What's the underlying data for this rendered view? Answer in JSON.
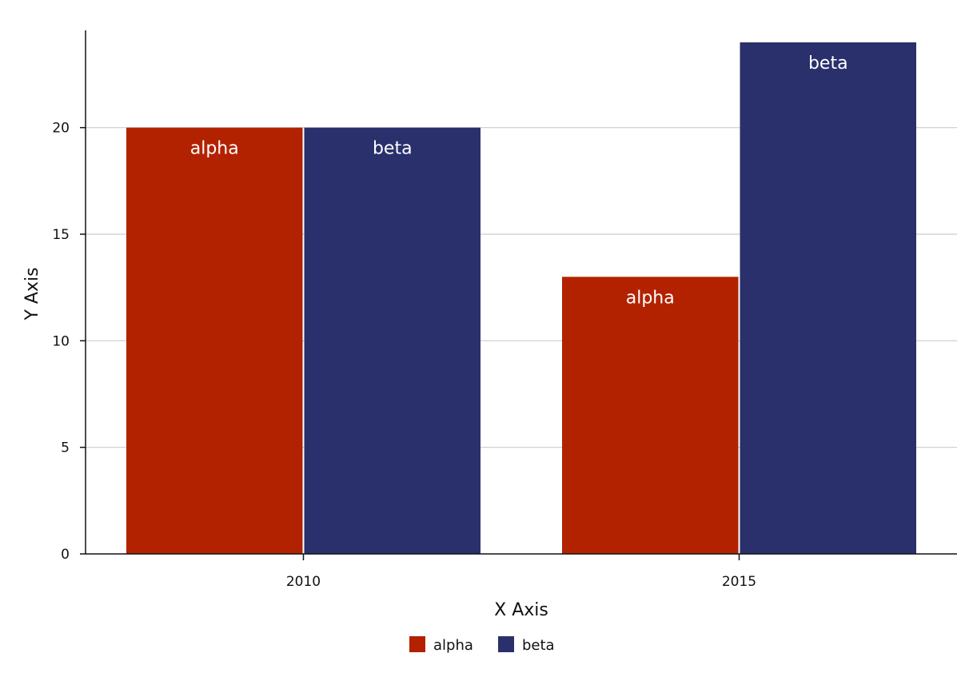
{
  "chart_data": {
    "type": "bar",
    "categories": [
      "2010",
      "2015"
    ],
    "series": [
      {
        "name": "alpha",
        "values": [
          20,
          13
        ],
        "color": "#b22200"
      },
      {
        "name": "beta",
        "values": [
          20,
          24
        ],
        "color": "#2a306c"
      }
    ],
    "xlabel": "X Axis",
    "ylabel": "Y Axis",
    "ylim": [
      0,
      24
    ],
    "yticks": [
      0,
      5,
      10,
      15,
      20
    ],
    "grid": "horizontal",
    "legend": "bottom-center",
    "data_labels": "series-name-inside-top"
  }
}
